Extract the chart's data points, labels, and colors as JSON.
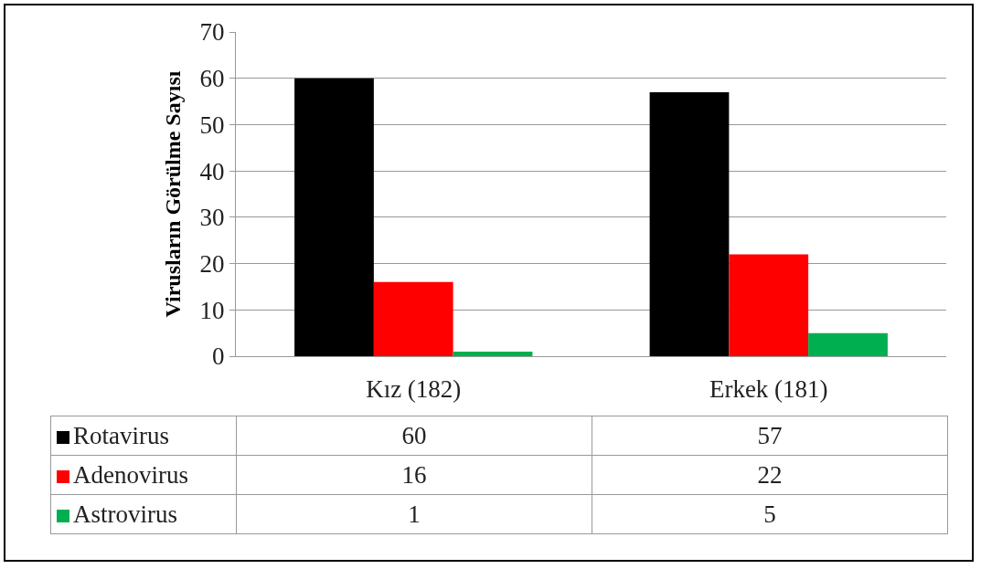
{
  "chart_data": {
    "type": "bar",
    "ylabel": "Virusların Görülme Sayısı",
    "categories": [
      "Kız (182)",
      "Erkek (181)"
    ],
    "series": [
      {
        "name": "Rotavirus",
        "color": "#000000",
        "values": [
          60,
          57
        ]
      },
      {
        "name": "Adenovirus",
        "color": "#ff0000",
        "values": [
          16,
          22
        ]
      },
      {
        "name": "Astrovirus",
        "color": "#00b050",
        "values": [
          1,
          5
        ]
      }
    ],
    "ylim": [
      0,
      70
    ],
    "yticks": [
      0,
      10,
      20,
      30,
      40,
      50,
      60,
      70
    ],
    "grid": "y",
    "legend": "bottom left",
    "data_labels": true
  }
}
